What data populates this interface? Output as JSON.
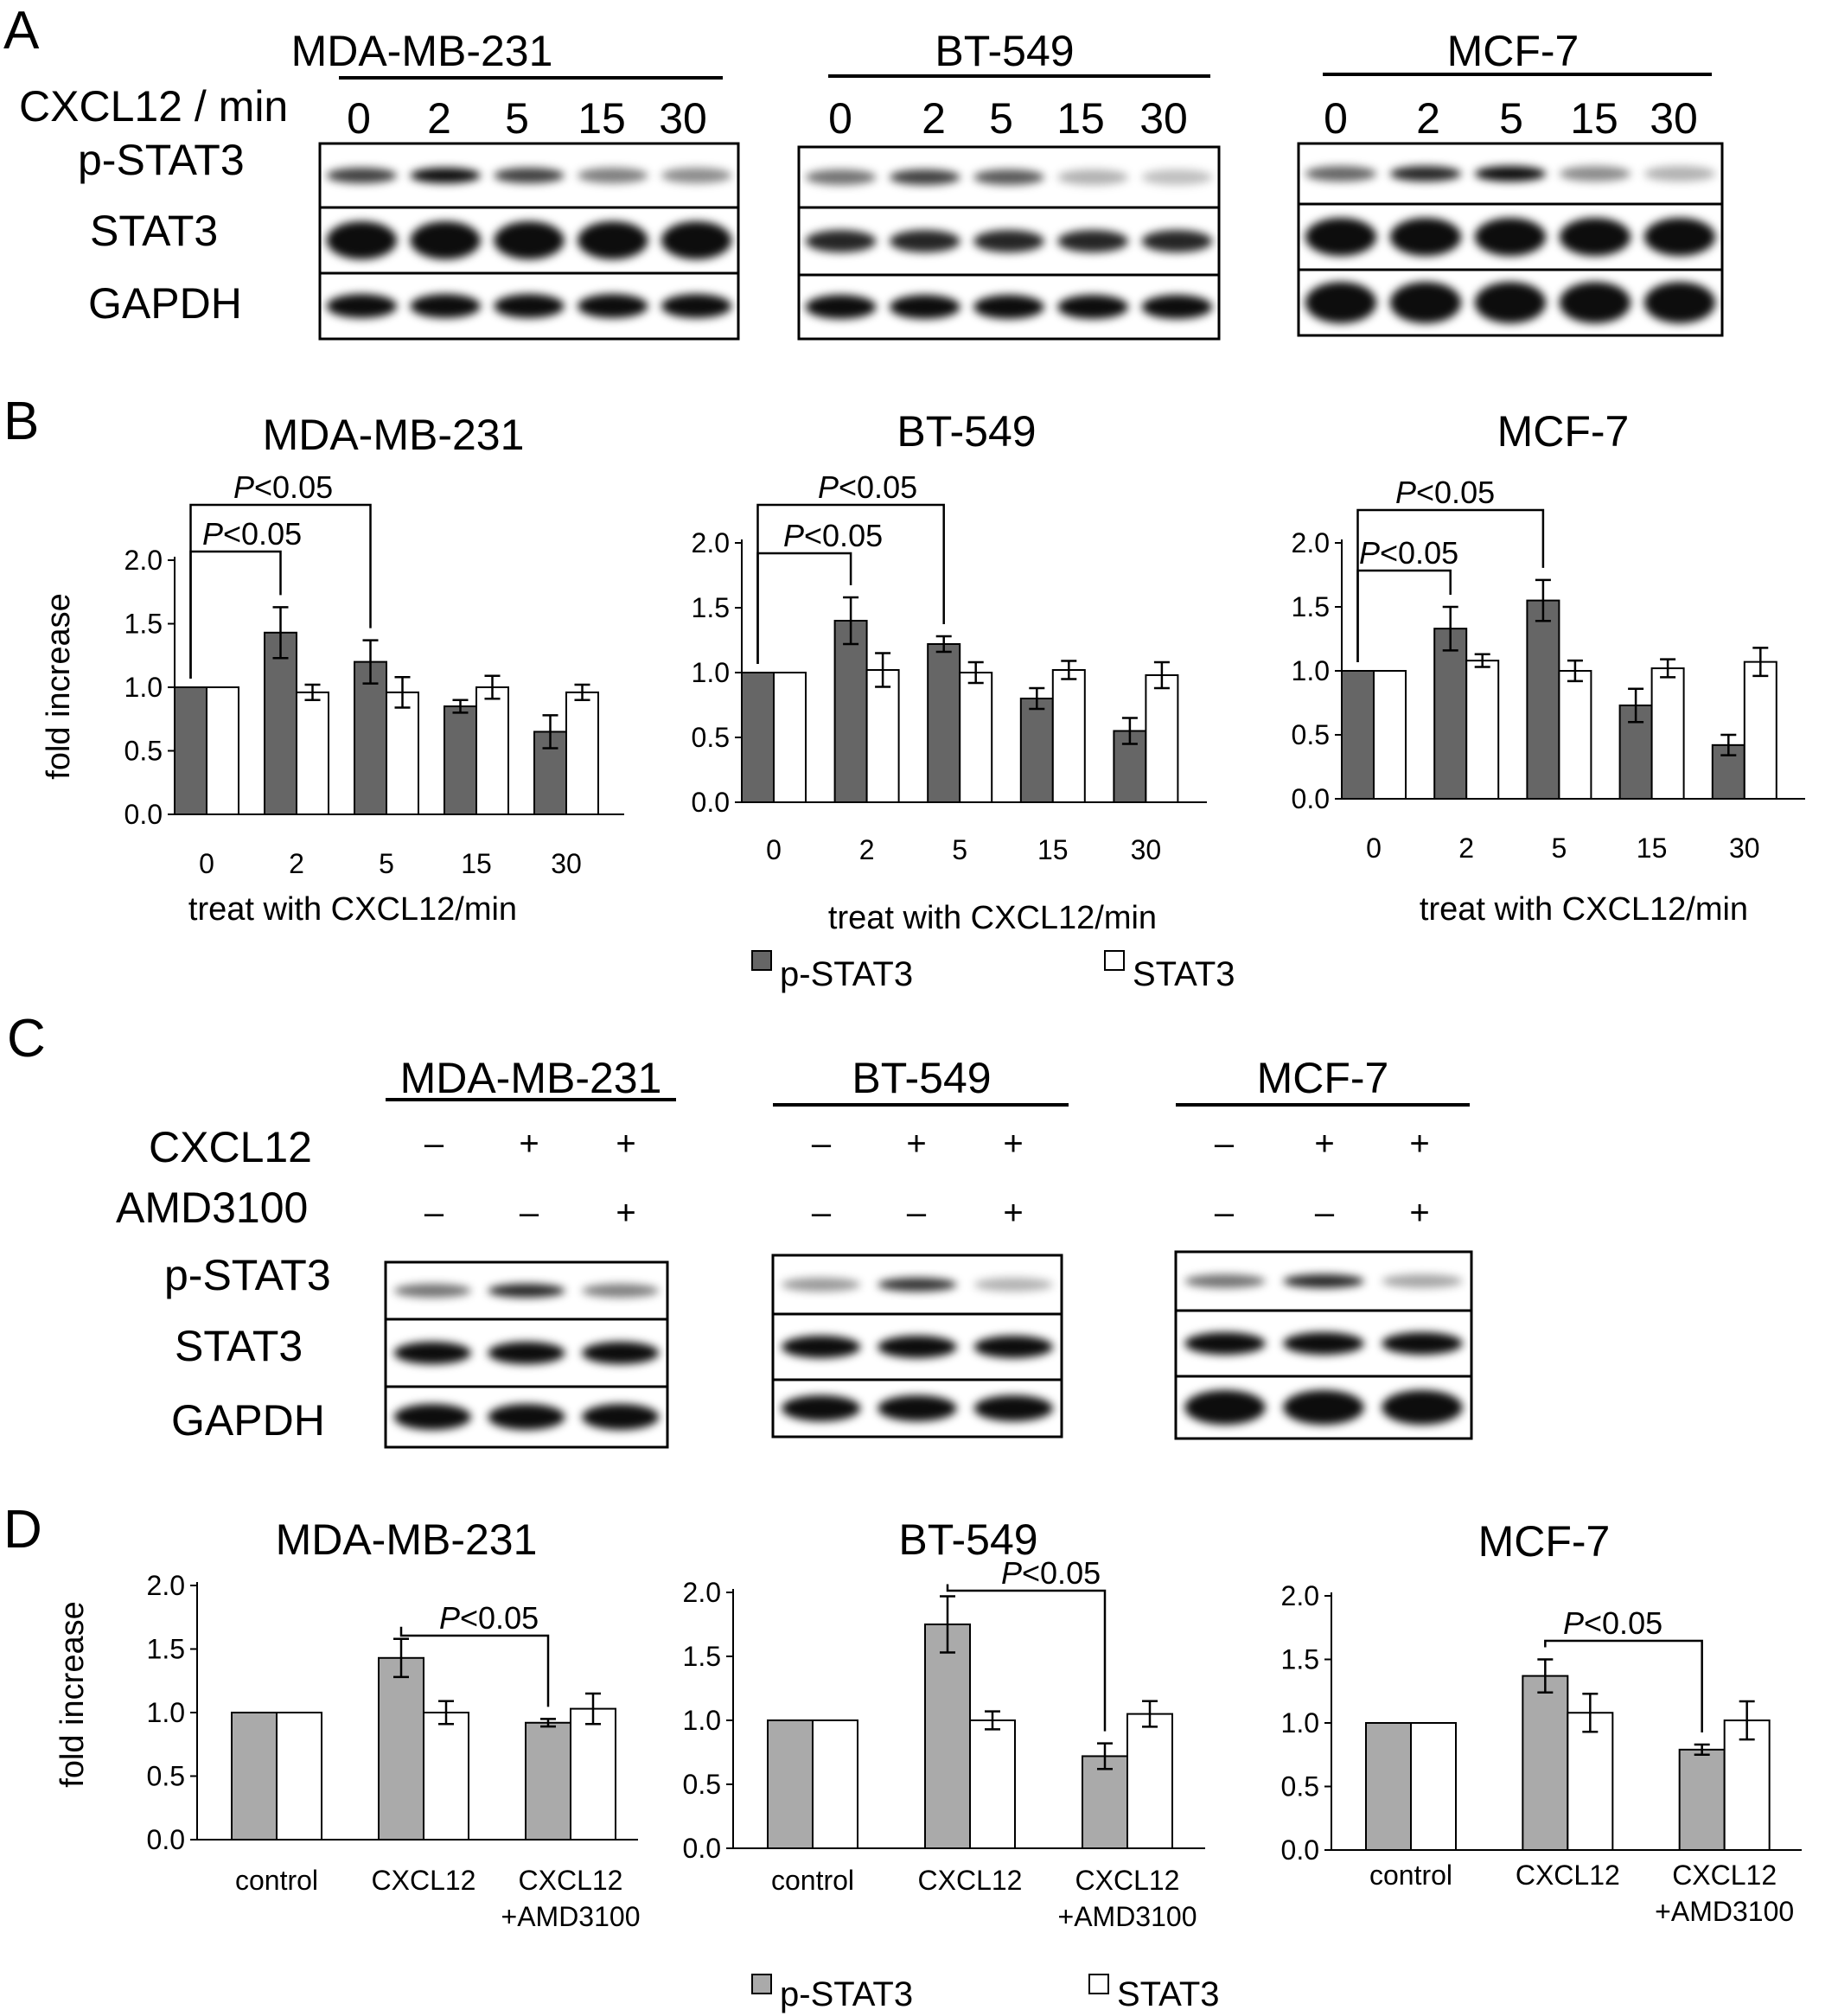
{
  "panels": {
    "A": {
      "letter": "A",
      "row_header": "CXCL12 / min",
      "lanes": [
        "0",
        "2",
        "5",
        "15",
        "30"
      ],
      "rows": [
        "p-STAT3",
        "STAT3",
        "GAPDH"
      ],
      "cell_lines": [
        {
          "name": "MDA-MB-231",
          "pstat3_intensity": [
            0.75,
            0.95,
            0.75,
            0.5,
            0.45
          ]
        },
        {
          "name": "BT-549",
          "pstat3_intensity": [
            0.55,
            0.75,
            0.65,
            0.3,
            0.25
          ]
        },
        {
          "name": "MCF-7",
          "pstat3_intensity": [
            0.6,
            0.85,
            0.95,
            0.45,
            0.3
          ]
        }
      ]
    },
    "B": {
      "letter": "B",
      "legend": [
        {
          "label": "p-STAT3",
          "color": "#666666"
        },
        {
          "label": "STAT3",
          "color": "#ffffff"
        }
      ]
    },
    "C": {
      "letter": "C",
      "treatments": [
        {
          "label": "CXCL12",
          "signs": [
            "–",
            "+",
            "+"
          ]
        },
        {
          "label": "AMD3100",
          "signs": [
            "–",
            "–",
            "+"
          ]
        }
      ],
      "rows": [
        "p-STAT3",
        "STAT3",
        "GAPDH"
      ],
      "cell_lines": [
        {
          "name": "MDA-MB-231",
          "pstat3_intensity": [
            0.55,
            0.85,
            0.5
          ]
        },
        {
          "name": "BT-549",
          "pstat3_intensity": [
            0.4,
            0.8,
            0.3
          ]
        },
        {
          "name": "MCF-7",
          "pstat3_intensity": [
            0.55,
            0.85,
            0.35
          ]
        }
      ]
    },
    "D": {
      "letter": "D",
      "legend": [
        {
          "label": "p-STAT3",
          "color": "#aaaaaa"
        },
        {
          "label": "STAT3",
          "color": "#ffffff"
        }
      ]
    }
  },
  "chart_data": [
    {
      "type": "bar",
      "title": "MDA-MB-231",
      "xlabel": "treat with CXCL12/min",
      "ylabel": "fold increase",
      "categories": [
        "0",
        "2",
        "5",
        "15",
        "30"
      ],
      "ylim": [
        0,
        2
      ],
      "yticks": [
        "0.0",
        "0.5",
        "1.0",
        "1.5",
        "2.0"
      ],
      "series": [
        {
          "name": "p-STAT3",
          "values": [
            1.0,
            1.43,
            1.2,
            0.85,
            0.65
          ],
          "errors": [
            0,
            0.2,
            0.17,
            0.05,
            0.13
          ]
        },
        {
          "name": "STAT3",
          "values": [
            1.0,
            0.96,
            0.96,
            1.0,
            0.96
          ],
          "errors": [
            0,
            0.06,
            0.12,
            0.09,
            0.06
          ]
        }
      ],
      "annotations": [
        {
          "text": "P<0.05",
          "from": 0,
          "to": 1
        },
        {
          "text": "P<0.05",
          "from": 0,
          "to": 2
        }
      ]
    },
    {
      "type": "bar",
      "title": "BT-549",
      "xlabel": "treat with CXCL12/min",
      "ylabel": "",
      "categories": [
        "0",
        "2",
        "5",
        "15",
        "30"
      ],
      "ylim": [
        0,
        2
      ],
      "yticks": [
        "0.0",
        "0.5",
        "1.0",
        "1.5",
        "2.0"
      ],
      "series": [
        {
          "name": "p-STAT3",
          "values": [
            1.0,
            1.4,
            1.22,
            0.8,
            0.55
          ],
          "errors": [
            0,
            0.18,
            0.06,
            0.08,
            0.1
          ]
        },
        {
          "name": "STAT3",
          "values": [
            1.0,
            1.02,
            1.0,
            1.02,
            0.98
          ],
          "errors": [
            0,
            0.13,
            0.08,
            0.07,
            0.1
          ]
        }
      ],
      "annotations": [
        {
          "text": "P<0.05",
          "from": 0,
          "to": 1
        },
        {
          "text": "P<0.05",
          "from": 0,
          "to": 2
        }
      ]
    },
    {
      "type": "bar",
      "title": "MCF-7",
      "xlabel": "treat with CXCL12/min",
      "ylabel": "",
      "categories": [
        "0",
        "2",
        "5",
        "15",
        "30"
      ],
      "ylim": [
        0,
        2
      ],
      "yticks": [
        "0.0",
        "0.5",
        "1.0",
        "1.5",
        "2.0"
      ],
      "series": [
        {
          "name": "p-STAT3",
          "values": [
            1.0,
            1.33,
            1.55,
            0.73,
            0.42
          ],
          "errors": [
            0,
            0.17,
            0.16,
            0.13,
            0.08
          ]
        },
        {
          "name": "STAT3",
          "values": [
            1.0,
            1.08,
            1.0,
            1.02,
            1.07
          ],
          "errors": [
            0,
            0.05,
            0.08,
            0.07,
            0.11
          ]
        }
      ],
      "annotations": [
        {
          "text": "P<0.05",
          "from": 0,
          "to": 1
        },
        {
          "text": "P<0.05",
          "from": 0,
          "to": 2
        }
      ]
    },
    {
      "type": "bar",
      "title": "MDA-MB-231",
      "xlabel": "",
      "ylabel": "fold increase",
      "categories": [
        "control",
        "CXCL12",
        "CXCL12\n+AMD3100"
      ],
      "ylim": [
        0,
        2
      ],
      "yticks": [
        "0.0",
        "0.5",
        "1.0",
        "1.5",
        "2.0"
      ],
      "series": [
        {
          "name": "p-STAT3",
          "values": [
            1.0,
            1.43,
            0.92
          ],
          "errors": [
            0,
            0.15,
            0.03
          ]
        },
        {
          "name": "STAT3",
          "values": [
            1.0,
            1.0,
            1.03
          ],
          "errors": [
            0,
            0.09,
            0.12
          ]
        }
      ],
      "annotations": [
        {
          "text": "P<0.05",
          "from": 1,
          "to": 2
        }
      ]
    },
    {
      "type": "bar",
      "title": "BT-549",
      "xlabel": "",
      "ylabel": "",
      "categories": [
        "control",
        "CXCL12",
        "CXCL12\n+AMD3100"
      ],
      "ylim": [
        0,
        2
      ],
      "yticks": [
        "0.0",
        "0.5",
        "1.0",
        "1.5",
        "2.0"
      ],
      "series": [
        {
          "name": "p-STAT3",
          "values": [
            1.0,
            1.75,
            0.72
          ],
          "errors": [
            0,
            0.22,
            0.1
          ]
        },
        {
          "name": "STAT3",
          "values": [
            1.0,
            1.0,
            1.05
          ],
          "errors": [
            0,
            0.07,
            0.1
          ]
        }
      ],
      "annotations": [
        {
          "text": "P<0.05",
          "from": 1,
          "to": 2
        }
      ]
    },
    {
      "type": "bar",
      "title": "MCF-7",
      "xlabel": "",
      "ylabel": "",
      "categories": [
        "control",
        "CXCL12",
        "CXCL12\n+AMD3100"
      ],
      "ylim": [
        0,
        2
      ],
      "yticks": [
        "0.0",
        "0.5",
        "1.0",
        "1.5",
        "2.0"
      ],
      "series": [
        {
          "name": "p-STAT3",
          "values": [
            1.0,
            1.37,
            0.79
          ],
          "errors": [
            0,
            0.13,
            0.04
          ]
        },
        {
          "name": "STAT3",
          "values": [
            1.0,
            1.08,
            1.02
          ],
          "errors": [
            0,
            0.15,
            0.15
          ]
        }
      ],
      "annotations": [
        {
          "text": "P<0.05",
          "from": 1,
          "to": 2
        }
      ]
    }
  ]
}
